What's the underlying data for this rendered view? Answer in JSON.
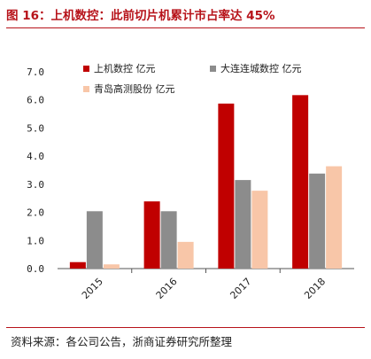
{
  "header": {
    "title": "图 16：上机数控：此前切片机累计市占率达 45%"
  },
  "footer": {
    "source": "资料来源：各公司公告，浙商证券研究所整理"
  },
  "chart_data": {
    "type": "bar",
    "title": "图 16：上机数控：此前切片机累计市占率达 45%",
    "xlabel": "",
    "ylabel": "",
    "ylim": [
      0,
      7
    ],
    "yticks": [
      0,
      1,
      2,
      3,
      4,
      5,
      6,
      7
    ],
    "ytick_labels": [
      "0.0",
      "1.0",
      "2.0",
      "3.0",
      "4.0",
      "5.0",
      "6.0",
      "7.0"
    ],
    "categories": [
      "2015",
      "2016",
      "2017",
      "2018"
    ],
    "series": [
      {
        "name": "上机数控 亿元",
        "color": "#c00000",
        "values": [
          0.23,
          2.39,
          5.87,
          6.17
        ]
      },
      {
        "name": "大连连城数控  亿元",
        "color": "#8c8c8c",
        "values": [
          2.04,
          2.04,
          3.15,
          3.38
        ]
      },
      {
        "name": "青岛高测股份 亿元",
        "color": "#f8c6a8",
        "values": [
          0.15,
          0.95,
          2.77,
          3.64
        ]
      }
    ],
    "legend_position": "top",
    "grid": false
  }
}
